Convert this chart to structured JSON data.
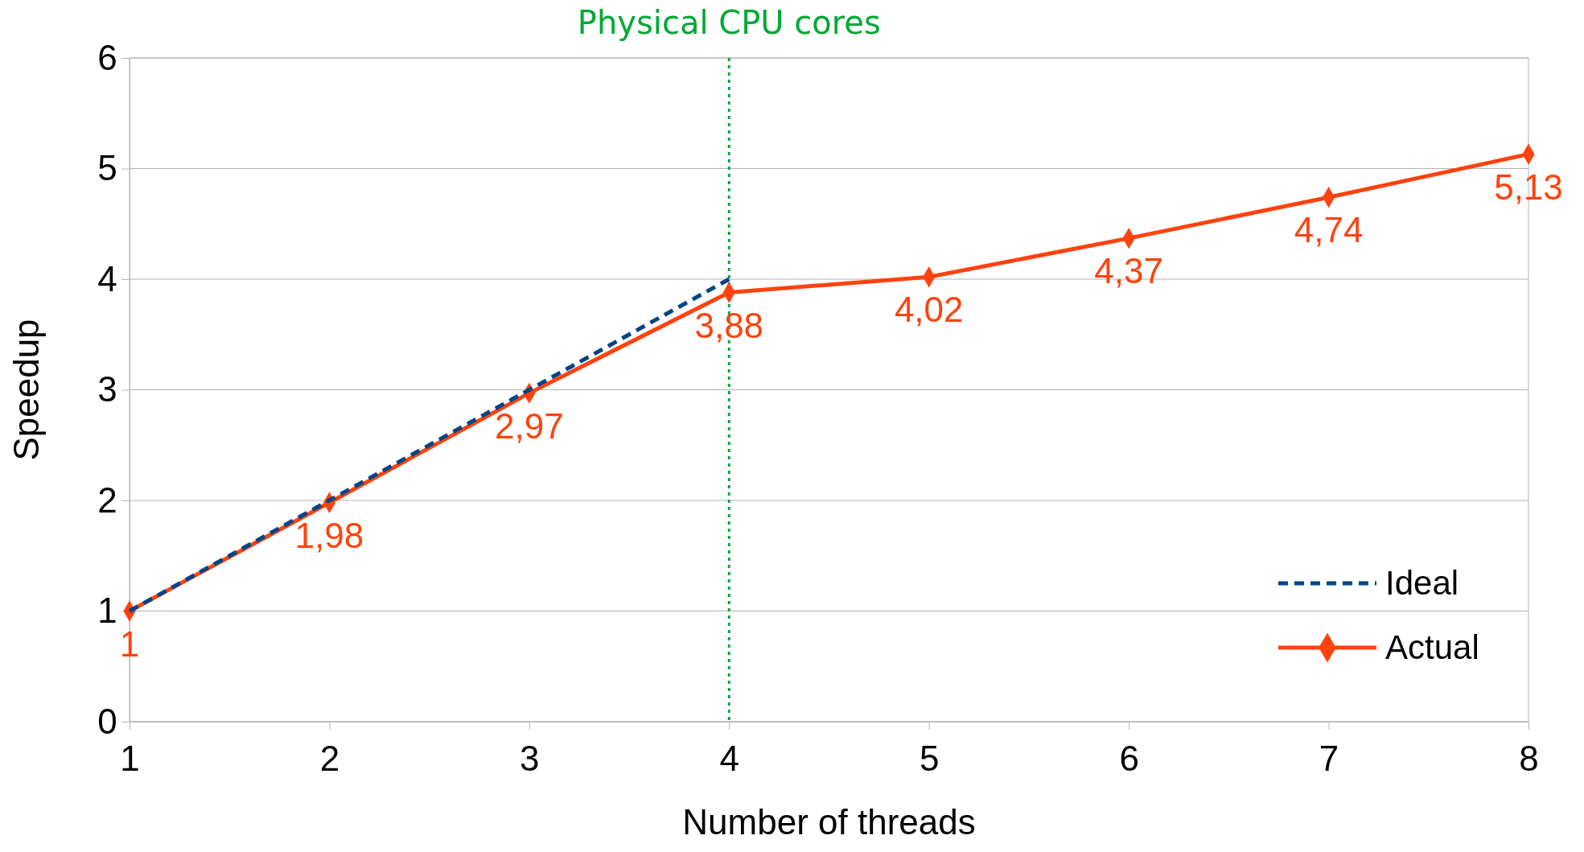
{
  "chart_data": {
    "type": "line",
    "xlabel": "Number of threads",
    "ylabel": "Speedup",
    "x": [
      1,
      2,
      3,
      4,
      5,
      6,
      7,
      8
    ],
    "xlim": [
      1,
      8
    ],
    "xticks": [
      1,
      2,
      3,
      4,
      5,
      6,
      7,
      8
    ],
    "ylim": [
      0,
      6
    ],
    "yticks": [
      0,
      1,
      2,
      3,
      4,
      5,
      6
    ],
    "grid": "y",
    "legend": "bottom right",
    "series": [
      {
        "name": "Ideal",
        "color": "#004586",
        "x": [
          1,
          2,
          3,
          4
        ],
        "values": [
          1,
          2,
          3,
          4
        ],
        "line_style": "dashed",
        "marker": "none"
      },
      {
        "name": "Actual",
        "color": "#ff420e",
        "values": [
          1,
          1.98,
          2.97,
          3.88,
          4.02,
          4.37,
          4.74,
          5.13
        ],
        "line_style": "solid",
        "marker": "diamond",
        "value_labels": [
          "1",
          "1,98",
          "2,97",
          "3,88",
          "4,02",
          "4,37",
          "4,74",
          "5,13"
        ]
      }
    ],
    "ref_lines": [
      {
        "axis": "x",
        "value": 4,
        "label": "Physical CPU cores",
        "color": "#00a933",
        "line_style": "dotted"
      }
    ]
  }
}
